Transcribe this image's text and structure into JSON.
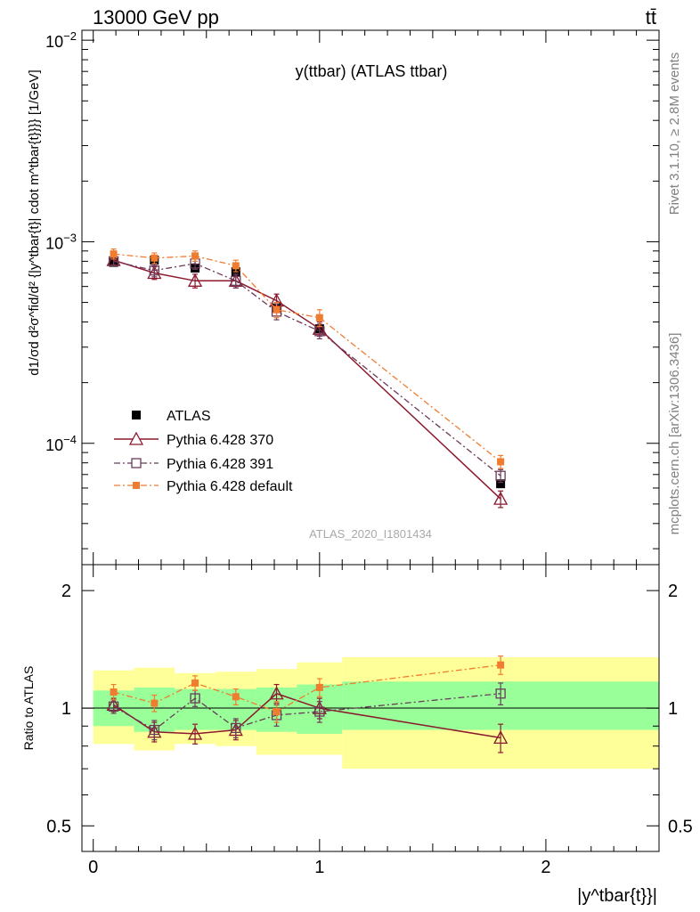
{
  "header": {
    "energy_label": "13000 GeV pp",
    "process_label": "tt̄"
  },
  "side_labels": {
    "rivet": "Rivet 3.1.10, ≥ 2.8M events",
    "mcplots": "mcplots.cern.ch [arXiv:1306.3436]"
  },
  "chart_data": [
    {
      "panel": "main",
      "type": "line",
      "title": "y(ttbar) (ATLAS ttbar)",
      "ylabel": "d1/σd d²σ^fid/d² {|y^tbar{t}| cdot m^tbar{t}}}} [1/GeV]",
      "yscale": "log",
      "ylim": [
        2.5e-05,
        0.0112
      ],
      "xlim": [
        -0.05,
        2.5
      ],
      "ytick_labels": [
        "10^-2",
        "10^-3",
        "10^-4"
      ],
      "watermark": "ATLAS_2020_I1801434",
      "legend_position": "bottom-left",
      "x_edges": [
        0.0,
        0.18,
        0.36,
        0.54,
        0.72,
        0.9,
        1.1,
        2.5
      ],
      "x": [
        0.09,
        0.27,
        0.45,
        0.63,
        0.81,
        1.0,
        1.8
      ],
      "series": [
        {
          "name": "ATLAS",
          "color": "#000000",
          "marker": "square-filled",
          "values": [
            0.00079,
            0.00081,
            0.00074,
            0.00071,
            0.00047,
            0.00037,
            6.3e-05
          ]
        },
        {
          "name": "Pythia 6.428 370",
          "color": "#8b1a2e",
          "marker": "triangle-open",
          "linestyle": "solid",
          "values": [
            0.00081,
            0.0007,
            0.00064,
            0.00064,
            0.00051,
            0.00037,
            5.3e-05
          ],
          "errors": [
            4e-05,
            5e-05,
            5e-05,
            5e-05,
            4e-05,
            3e-05,
            5e-06
          ]
        },
        {
          "name": "Pythia 6.428 391",
          "color": "#6b3a5a",
          "marker": "square-open",
          "linestyle": "dash-dot",
          "values": [
            0.0008,
            0.00072,
            0.00078,
            0.00064,
            0.00045,
            0.00036,
            6.9e-05
          ],
          "errors": [
            4e-05,
            5e-05,
            5e-05,
            5e-05,
            4e-05,
            3e-05,
            5e-06
          ]
        },
        {
          "name": "Pythia 6.428 default",
          "color": "#f07c30",
          "marker": "square-filled",
          "linestyle": "dash-dot",
          "values": [
            0.00087,
            0.00083,
            0.00085,
            0.00076,
            0.00046,
            0.00042,
            8.1e-05
          ],
          "errors": [
            5e-05,
            5e-05,
            5e-05,
            5e-05,
            4e-05,
            4e-05,
            6e-06
          ]
        }
      ]
    },
    {
      "panel": "ratio",
      "type": "line",
      "ylabel": "Ratio to ATLAS",
      "yscale": "log",
      "ylim": [
        0.43,
        2.33
      ],
      "ytick_labels": [
        "0.5",
        "1",
        "2"
      ],
      "xlabel": "|y^tbar{t}}|",
      "xtick_labels": [
        "0",
        "1",
        "2"
      ],
      "x_edges": [
        0.0,
        0.18,
        0.36,
        0.54,
        0.72,
        0.9,
        1.1,
        2.5
      ],
      "x": [
        0.09,
        0.27,
        0.45,
        0.63,
        0.81,
        1.0,
        1.8
      ],
      "bands": {
        "inner": {
          "color": "#99ff99",
          "lower": [
            0.9,
            0.87,
            0.88,
            0.88,
            0.87,
            0.86,
            0.88
          ],
          "upper": [
            1.11,
            1.13,
            1.12,
            1.12,
            1.13,
            1.15,
            1.17
          ]
        },
        "outer": {
          "color": "#ffff99",
          "lower": [
            0.81,
            0.78,
            0.81,
            0.8,
            0.76,
            0.76,
            0.7
          ],
          "upper": [
            1.25,
            1.27,
            1.23,
            1.24,
            1.26,
            1.31,
            1.35
          ]
        }
      },
      "series": [
        {
          "name": "Pythia 6.428 370",
          "color": "#8b1a2e",
          "marker": "triangle-open",
          "linestyle": "solid",
          "values": [
            1.02,
            0.87,
            0.86,
            0.88,
            1.09,
            1.0,
            0.84
          ],
          "errors": [
            0.04,
            0.05,
            0.05,
            0.05,
            0.06,
            0.06,
            0.07
          ]
        },
        {
          "name": "Pythia 6.428 391",
          "color": "#6b3a5a",
          "marker": "square-open",
          "linestyle": "dash-dot",
          "values": [
            1.01,
            0.88,
            1.06,
            0.89,
            0.96,
            0.98,
            1.09
          ],
          "errors": [
            0.04,
            0.05,
            0.05,
            0.05,
            0.06,
            0.06,
            0.07
          ]
        },
        {
          "name": "Pythia 6.428 default",
          "color": "#f07c30",
          "marker": "square-filled",
          "linestyle": "dash-dot",
          "values": [
            1.1,
            1.03,
            1.16,
            1.07,
            0.98,
            1.13,
            1.29
          ],
          "errors": [
            0.05,
            0.05,
            0.05,
            0.05,
            0.06,
            0.06,
            0.07
          ]
        }
      ]
    }
  ]
}
